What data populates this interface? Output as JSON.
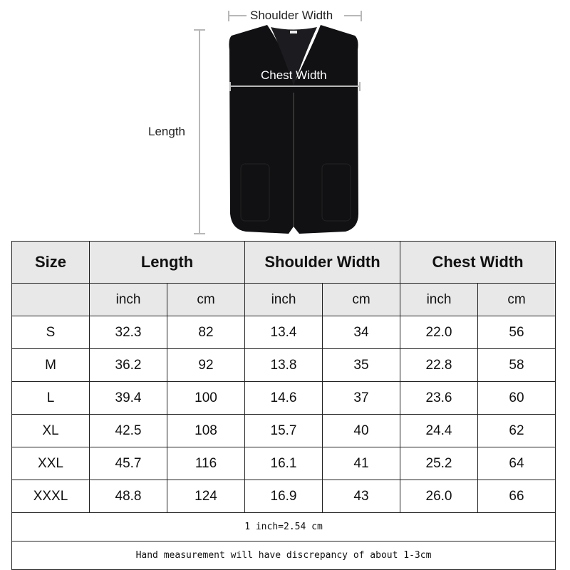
{
  "diagram": {
    "shoulder_label": "Shoulder Width",
    "chest_label": "Chest Width",
    "length_label": "Length",
    "garment_color": "#111114",
    "measure_line_color": "#b8b8b8"
  },
  "table": {
    "headers": [
      "Size",
      "Length",
      "Shoulder Width",
      "Chest Width"
    ],
    "units": [
      "inch",
      "cm",
      "inch",
      "cm",
      "inch",
      "cm"
    ],
    "rows": [
      [
        "S",
        "32.3",
        "82",
        "13.4",
        "34",
        "22.0",
        "56"
      ],
      [
        "M",
        "36.2",
        "92",
        "13.8",
        "35",
        "22.8",
        "58"
      ],
      [
        "L",
        "39.4",
        "100",
        "14.6",
        "37",
        "23.6",
        "60"
      ],
      [
        "XL",
        "42.5",
        "108",
        "15.7",
        "40",
        "24.4",
        "62"
      ],
      [
        "XXL",
        "45.7",
        "116",
        "16.1",
        "41",
        "25.2",
        "64"
      ],
      [
        "XXXL",
        "48.8",
        "124",
        "16.9",
        "43",
        "26.0",
        "66"
      ]
    ],
    "header_bg": "#e8e8e8"
  },
  "notes": [
    "1 inch=2.54 cm",
    "Hand measurement will have discrepancy of about 1-3cm"
  ]
}
